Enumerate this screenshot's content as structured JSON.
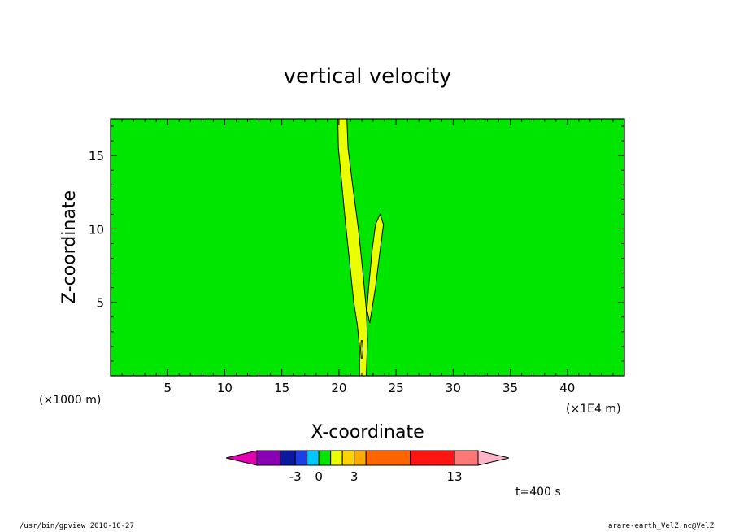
{
  "chart_data": {
    "type": "heatmap",
    "title": "vertical velocity",
    "xlabel": "X-coordinate",
    "ylabel": "Z-coordinate",
    "x_unit_label": "(×1E4 m)",
    "y_unit_label": "(×1000 m)",
    "xlim": [
      0,
      45
    ],
    "ylim": [
      0,
      17.5
    ],
    "x_ticks": [
      5,
      10,
      15,
      20,
      25,
      30,
      35,
      40
    ],
    "y_ticks": [
      5,
      10,
      15
    ],
    "background_color": "#00e600",
    "contour_color": "#eaff00",
    "contours": [
      {
        "name": "main-plume",
        "points": [
          [
            19.9,
            17.5
          ],
          [
            20.7,
            17.5
          ],
          [
            20.8,
            15.5
          ],
          [
            21.2,
            13
          ],
          [
            21.7,
            10
          ],
          [
            22.1,
            7
          ],
          [
            22.4,
            4.5
          ],
          [
            22.5,
            2.5
          ],
          [
            22.4,
            0
          ],
          [
            21.8,
            0
          ],
          [
            21.8,
            2
          ],
          [
            21.6,
            3.5
          ],
          [
            21.3,
            5
          ],
          [
            20.9,
            8
          ],
          [
            20.5,
            11
          ],
          [
            20.2,
            13.5
          ],
          [
            19.95,
            15.5
          ]
        ]
      },
      {
        "name": "side-lobe",
        "points": [
          [
            22.7,
            3.6
          ],
          [
            23.2,
            6
          ],
          [
            23.6,
            8.5
          ],
          [
            23.9,
            10.3
          ],
          [
            23.6,
            11
          ],
          [
            23.2,
            10.3
          ],
          [
            22.9,
            8.5
          ],
          [
            22.6,
            6
          ],
          [
            22.45,
            4.5
          ]
        ]
      },
      {
        "name": "small-cell",
        "points": [
          [
            21.95,
            1.2
          ],
          [
            22.05,
            1.2
          ],
          [
            22.1,
            1.8
          ],
          [
            22.05,
            2.4
          ],
          [
            21.95,
            2.4
          ],
          [
            21.9,
            1.8
          ]
        ]
      }
    ],
    "colorbar": {
      "colors": [
        "#e600b4",
        "#8a00b4",
        "#0a1aa0",
        "#1c3ee6",
        "#00c8ff",
        "#00e600",
        "#eaff00",
        "#ffd200",
        "#ffaa00",
        "#ff6400",
        "#ff1414",
        "#ff7878",
        "#ffb4c8"
      ],
      "labels": [
        "-3",
        "0",
        "3",
        "13"
      ]
    },
    "annotation": "t=400 s"
  },
  "footer": {
    "left": "/usr/bin/gpview   2010-10-27",
    "right": "arare-earth_VelZ.nc@VelZ"
  }
}
